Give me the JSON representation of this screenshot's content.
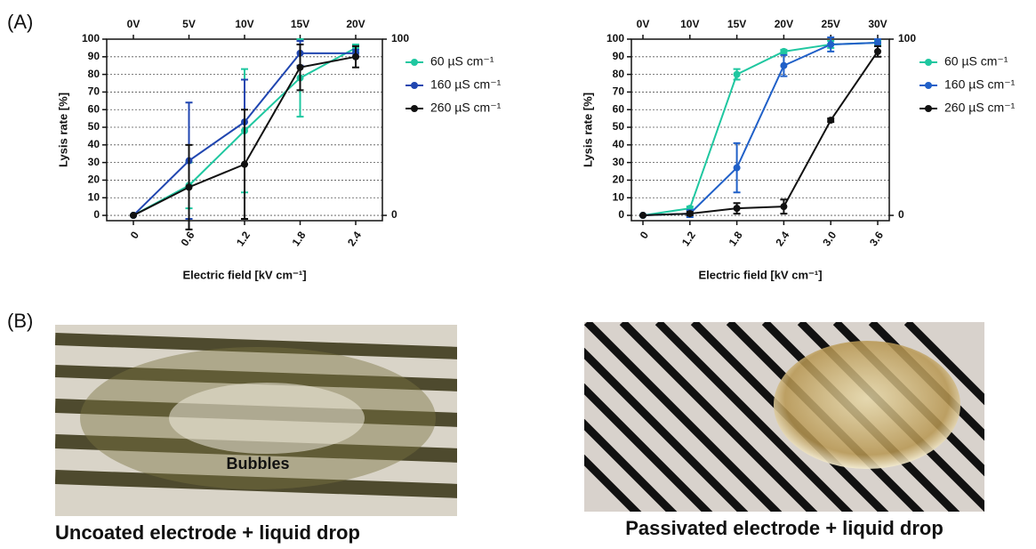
{
  "chart_data": [
    {
      "type": "line",
      "ylabel": "Lysis rate [%]",
      "xlabel": "Electric field [kV cm⁻¹]",
      "categories": [
        "0",
        "0.6",
        "1.2",
        "1.8",
        "2.4"
      ],
      "top_categories": [
        "0V",
        "5V",
        "10V",
        "15V",
        "20V"
      ],
      "ylim": [
        -3,
        100
      ],
      "yticks": [
        0,
        10,
        20,
        30,
        40,
        50,
        60,
        70,
        80,
        90,
        100
      ],
      "y2lim": [
        -3,
        100
      ],
      "y2ticks": [
        0,
        100
      ],
      "grid": true,
      "series": [
        {
          "name": "60 µS cm⁻¹",
          "color": "#1fc7a0",
          "values": [
            0,
            17,
            48,
            78,
            95
          ],
          "errors": [
            0,
            13,
            35,
            22,
            2
          ]
        },
        {
          "name": "160 µS cm⁻¹",
          "color": "#2046b0",
          "values": [
            0,
            31,
            53,
            92,
            92
          ],
          "errors": [
            0,
            33,
            24,
            7,
            2
          ]
        },
        {
          "name": "260 µS cm⁻¹",
          "color": "#111111",
          "values": [
            0,
            16,
            29,
            84,
            90
          ],
          "errors": [
            0,
            24,
            31,
            13,
            6
          ]
        }
      ]
    },
    {
      "type": "line",
      "ylabel": "Lysis rate [%]",
      "xlabel": "Electric field [kV cm⁻¹]",
      "categories": [
        "0",
        "1.2",
        "1.8",
        "2.4",
        "3.0",
        "3.6"
      ],
      "top_categories": [
        "0V",
        "10V",
        "15V",
        "20V",
        "25V",
        "30V"
      ],
      "ylim": [
        -3,
        100
      ],
      "yticks": [
        0,
        10,
        20,
        30,
        40,
        50,
        60,
        70,
        80,
        90,
        100
      ],
      "y2lim": [
        -3,
        100
      ],
      "y2ticks": [
        0,
        100
      ],
      "grid": true,
      "series": [
        {
          "name": "60 µS cm⁻¹",
          "color": "#1fc7a0",
          "values": [
            0,
            4,
            80,
            93,
            97,
            98
          ],
          "errors": [
            0,
            1,
            3,
            1,
            2,
            1
          ]
        },
        {
          "name": "160 µS cm⁻¹",
          "color": "#2060c8",
          "values": [
            0,
            1,
            27,
            85,
            97,
            98
          ],
          "errors": [
            0,
            2,
            14,
            6,
            4,
            2
          ]
        },
        {
          "name": "260 µS cm⁻¹",
          "color": "#111111",
          "values": [
            0,
            1,
            4,
            5,
            54,
            93
          ],
          "errors": [
            0,
            1,
            3,
            4,
            1,
            3
          ]
        }
      ]
    }
  ],
  "panel_labels": [
    "(A)",
    "(B)"
  ],
  "photos": [
    {
      "caption": "Uncoated electrode + liquid drop",
      "annotation": "Bubbles"
    },
    {
      "caption": "Passivated electrode + liquid drop"
    }
  ]
}
